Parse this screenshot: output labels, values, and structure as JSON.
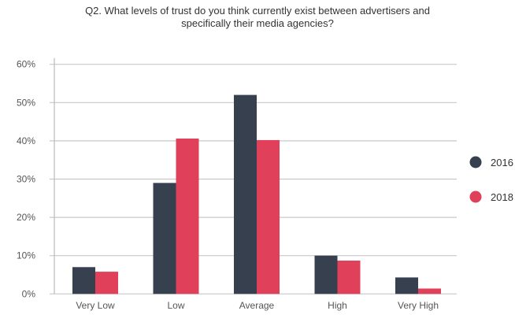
{
  "chart_data": {
    "type": "bar",
    "title": "Q2. What levels of trust do you think currently exist between advertisers and specifically their media agencies?",
    "title_lines": [
      "Q2. What levels of trust do you think currently exist between advertisers and",
      "specifically their media agencies?"
    ],
    "categories": [
      "Very Low",
      "Low",
      "Average",
      "High",
      "Very High"
    ],
    "series": [
      {
        "name": "2016",
        "color": "#37404f",
        "values": [
          7,
          29,
          52,
          10,
          4.3
        ]
      },
      {
        "name": "2018",
        "color": "#e0405a",
        "values": [
          5.8,
          40.6,
          40.2,
          8.7,
          1.4
        ]
      }
    ],
    "yticks": [
      "0%",
      "10%",
      "20%",
      "30%",
      "40%",
      "50%",
      "60%"
    ],
    "ylim": [
      0,
      60
    ],
    "xlabel": "",
    "ylabel": "",
    "grid": true,
    "legend": "right"
  }
}
